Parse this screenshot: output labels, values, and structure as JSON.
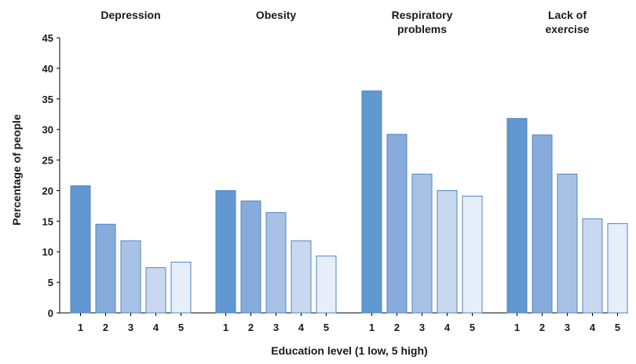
{
  "chart_data": {
    "type": "bar",
    "xlabel": "Education level (1 low, 5 high)",
    "ylabel": "Percentage of people",
    "ylim": [
      0,
      45
    ],
    "yticks": [
      0,
      5,
      10,
      15,
      20,
      25,
      30,
      35,
      40,
      45
    ],
    "categories": [
      "1",
      "2",
      "3",
      "4",
      "5"
    ],
    "category_colors": [
      "#6198d1",
      "#87acdc",
      "#a8c2e6",
      "#c8d8ef",
      "#e6eef9"
    ],
    "groups": [
      {
        "title_lines": [
          "Depression"
        ],
        "values": [
          20.8,
          14.5,
          11.8,
          7.4,
          8.3
        ]
      },
      {
        "title_lines": [
          "Obesity"
        ],
        "values": [
          20.0,
          18.3,
          16.4,
          11.8,
          9.3
        ]
      },
      {
        "title_lines": [
          "Respiratory",
          "problems"
        ],
        "values": [
          36.3,
          29.2,
          22.7,
          20.0,
          19.1
        ]
      },
      {
        "title_lines": [
          "Lack of",
          "exercise"
        ],
        "values": [
          31.8,
          29.1,
          22.7,
          15.4,
          14.6
        ]
      }
    ],
    "grid": false,
    "legend": "none"
  }
}
